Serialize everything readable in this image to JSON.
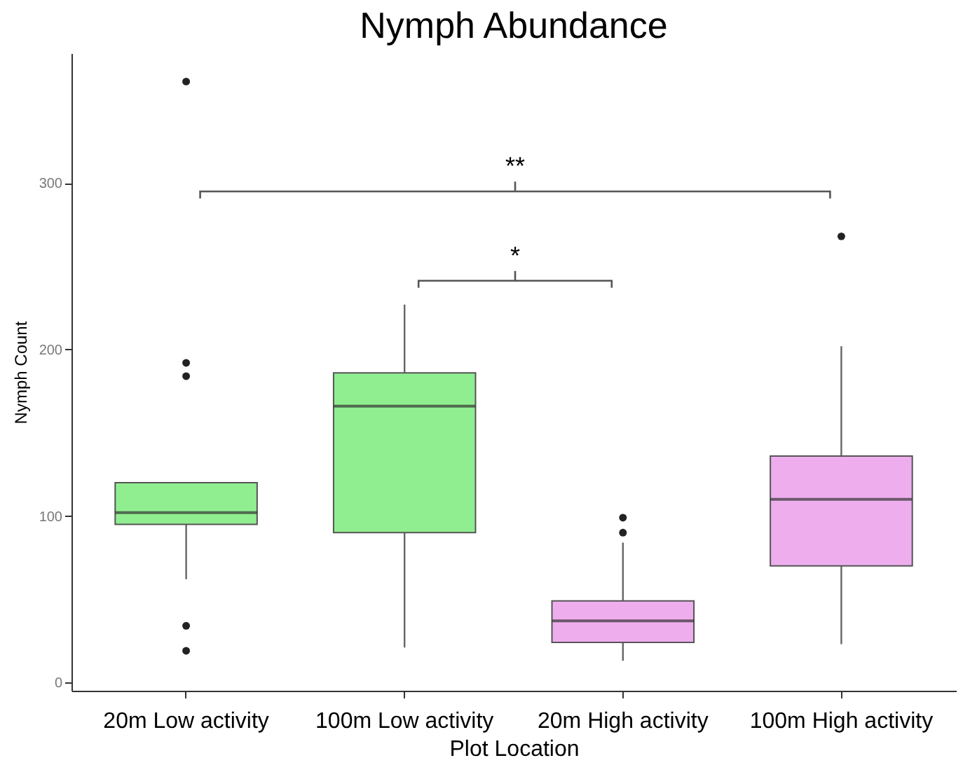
{
  "chart_data": {
    "type": "box",
    "title": "Nymph Abundance",
    "xlabel": "Plot Location",
    "ylabel": "Nymph Count",
    "categories": [
      "20m Low activity",
      "100m Low activity",
      "20m High activity",
      "100m High activity"
    ],
    "colors": [
      "#90ee90",
      "#90ee90",
      "#eeaeee",
      "#eeaeee"
    ],
    "boxes": [
      {
        "low": 62,
        "q1": 95,
        "median": 102,
        "q3": 120,
        "high": 120,
        "outliers": [
          361,
          192,
          184,
          34,
          19
        ]
      },
      {
        "low": 21,
        "q1": 90,
        "median": 166,
        "q3": 186,
        "high": 227
      },
      {
        "low": 13,
        "q1": 24,
        "median": 37,
        "q3": 49,
        "high": 84,
        "outliers": [
          99,
          90
        ]
      },
      {
        "low": 23,
        "q1": 70,
        "median": 110,
        "q3": 136,
        "high": 202,
        "outliers": [
          268
        ]
      }
    ],
    "ylim": [
      -5,
      378
    ],
    "yticks": [
      0,
      100,
      200,
      300
    ],
    "grid": false,
    "legend": false,
    "annotations": [
      "**",
      "*"
    ]
  }
}
